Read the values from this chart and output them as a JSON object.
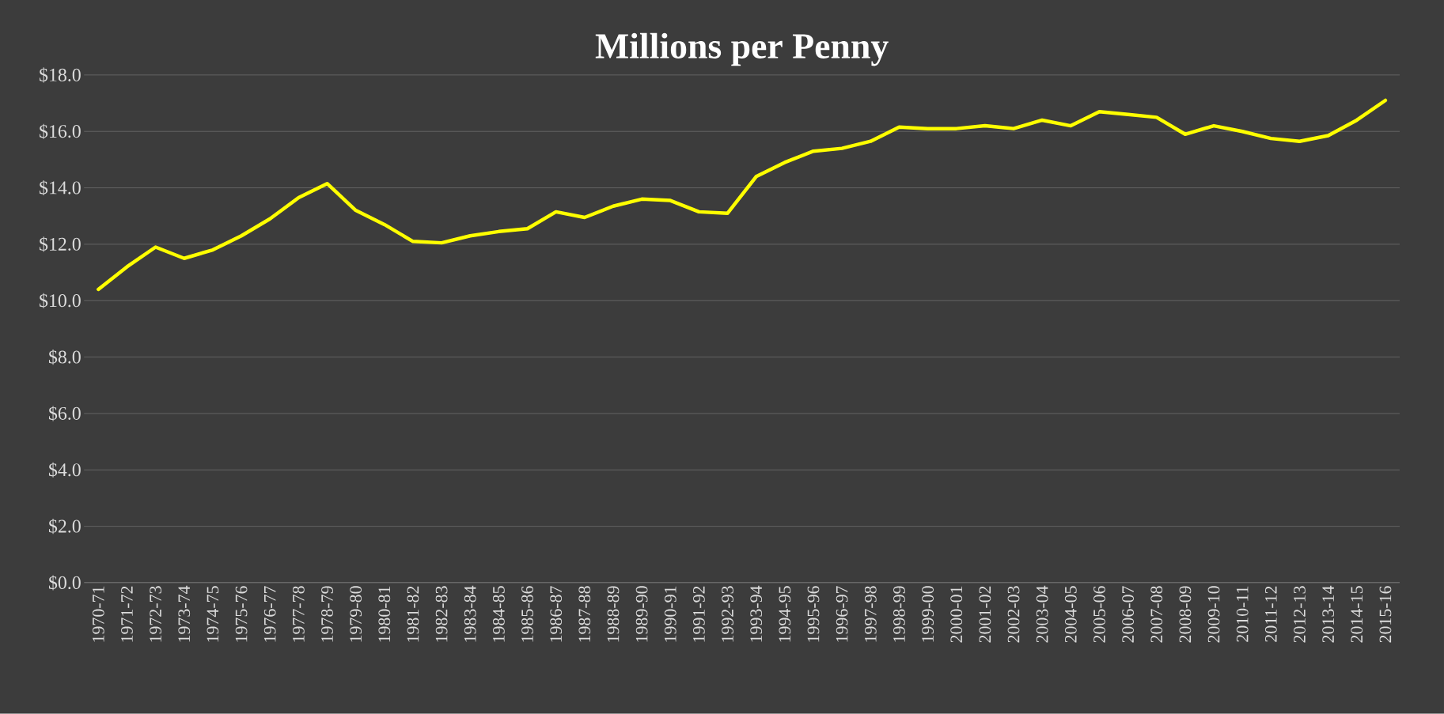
{
  "chart_data": {
    "type": "line",
    "title": "Millions per Penny",
    "categories": [
      "1970-71",
      "1971-72",
      "1972-73",
      "1973-74",
      "1974-75",
      "1975-76",
      "1976-77",
      "1977-78",
      "1978-79",
      "1979-80",
      "1980-81",
      "1981-82",
      "1982-83",
      "1983-84",
      "1984-85",
      "1985-86",
      "1986-87",
      "1987-88",
      "1988-89",
      "1989-90",
      "1990-91",
      "1991-92",
      "1992-93",
      "1993-94",
      "1994-95",
      "1995-96",
      "1996-97",
      "1997-98",
      "1998-99",
      "1999-00",
      "2000-01",
      "2001-02",
      "2002-03",
      "2003-04",
      "2004-05",
      "2005-06",
      "2006-07",
      "2007-08",
      "2008-09",
      "2009-10",
      "2010-11",
      "2011-12",
      "2012-13",
      "2013-14",
      "2014-15",
      "2015-16"
    ],
    "values": [
      10.4,
      11.2,
      11.9,
      11.5,
      11.8,
      12.3,
      12.9,
      13.65,
      14.15,
      13.2,
      12.7,
      12.1,
      12.05,
      12.3,
      12.45,
      12.55,
      13.15,
      12.95,
      13.35,
      13.6,
      13.55,
      13.15,
      13.1,
      14.4,
      14.9,
      15.3,
      15.4,
      15.65,
      16.15,
      16.1,
      16.1,
      16.2,
      16.1,
      16.4,
      16.2,
      16.7,
      16.6,
      16.5,
      15.9,
      16.2,
      16.0,
      15.75,
      15.65,
      15.85,
      16.4,
      17.1
    ],
    "color": "#ffff00",
    "ylim": [
      0,
      18
    ],
    "yticks": [
      {
        "value": 0,
        "label": "$0.0"
      },
      {
        "value": 2,
        "label": "$2.0"
      },
      {
        "value": 4,
        "label": "$4.0"
      },
      {
        "value": 6,
        "label": "$6.0"
      },
      {
        "value": 8,
        "label": "$8.0"
      },
      {
        "value": 10,
        "label": "$10.0"
      },
      {
        "value": 12,
        "label": "$12.0"
      },
      {
        "value": 14,
        "label": "$14.0"
      },
      {
        "value": 16,
        "label": "$16.0"
      },
      {
        "value": 18,
        "label": "$18.0"
      }
    ],
    "grid": "y",
    "marker": "none",
    "line_style": "solid"
  }
}
